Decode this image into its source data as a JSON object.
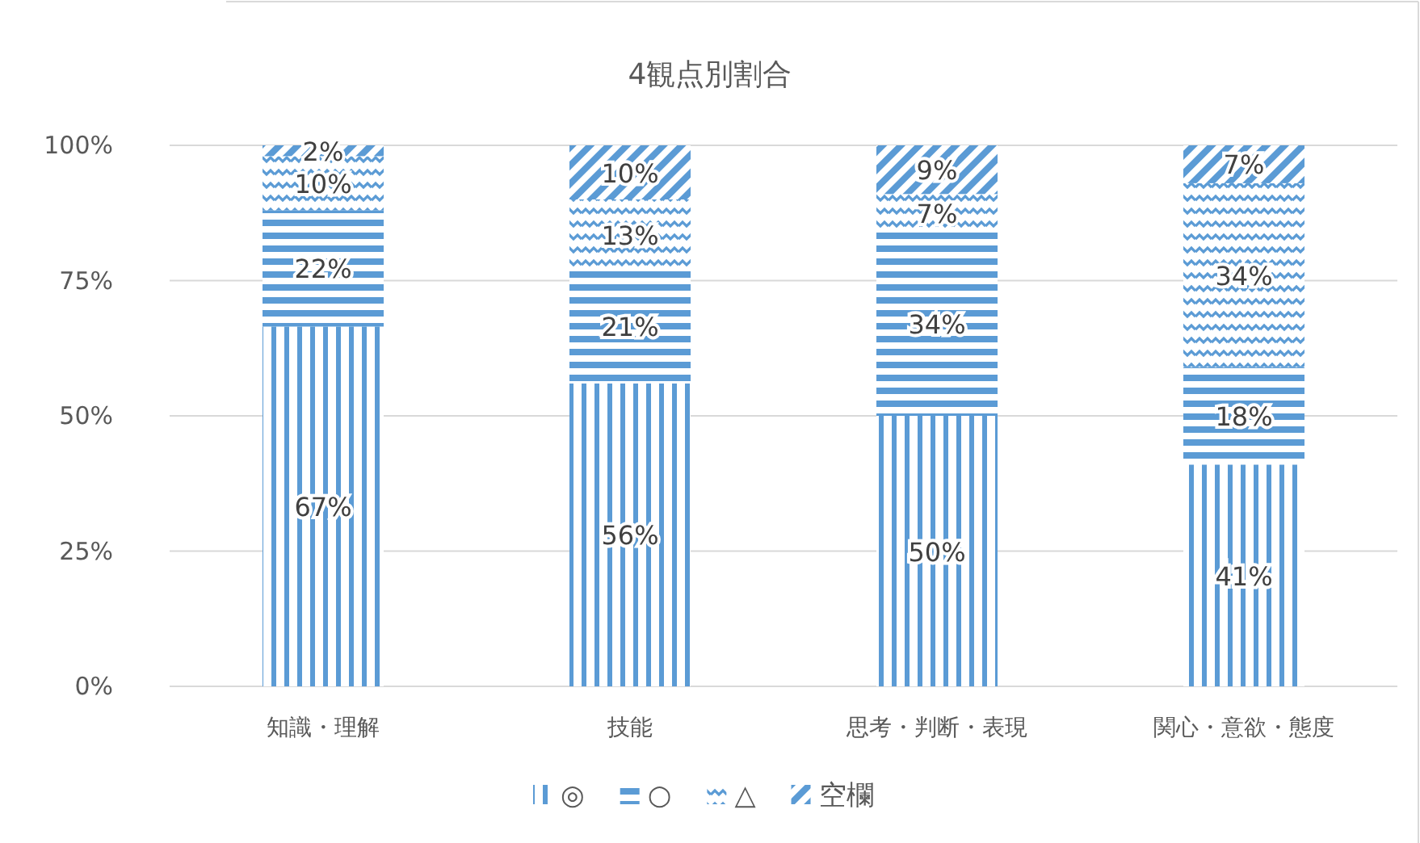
{
  "chart_data": {
    "type": "bar",
    "title": "4観点別割合",
    "stacked": true,
    "categories": [
      "知識・理解",
      "技能",
      "思考・判断・表現",
      "関心・意欲・態度"
    ],
    "series": [
      {
        "name": "◎",
        "color": "#5b9bd5",
        "values": [
          66.5,
          56,
          50,
          41
        ],
        "value_labels": [
          "67%",
          "56%",
          "50%",
          "41%"
        ]
      },
      {
        "name": "○",
        "color": "#5b9bd5",
        "values": [
          21.5,
          21,
          34,
          18
        ],
        "value_labels": [
          "22%",
          "21%",
          "34%",
          "18%"
        ]
      },
      {
        "name": "△",
        "color": "#5b9bd5",
        "values": [
          10,
          13,
          7,
          34
        ],
        "value_labels": [
          "10%",
          "13%",
          "7%",
          "34%"
        ]
      },
      {
        "name": "空欄",
        "color": "#5b9bd5",
        "values": [
          2,
          10,
          9,
          7
        ],
        "value_labels": [
          "2%",
          "10%",
          "9%",
          "7%"
        ]
      }
    ],
    "ylim": [
      0,
      100
    ],
    "yticks": [
      {
        "value": 0,
        "label": "0%"
      },
      {
        "value": 25,
        "label": "25%"
      },
      {
        "value": 50,
        "label": "50%"
      },
      {
        "value": 75,
        "label": "75%"
      },
      {
        "value": 100,
        "label": "100%"
      }
    ],
    "grid": "y",
    "legend": "bottom"
  }
}
